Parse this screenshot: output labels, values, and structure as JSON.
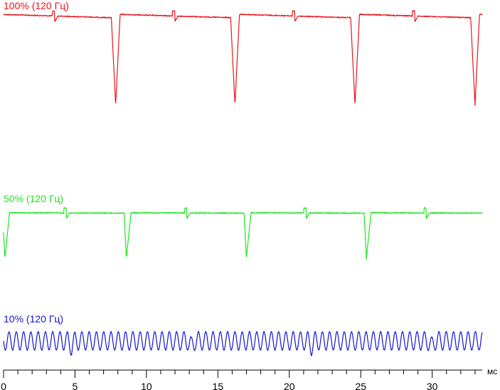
{
  "chart_data": {
    "type": "line",
    "title": "",
    "xlabel": "мс",
    "ylabel": "",
    "x_unit": "мс",
    "xlim": [
      0,
      33.5
    ],
    "x_ticks": [
      0,
      5,
      10,
      15,
      20,
      25,
      30
    ],
    "x_tick_labels": [
      "0",
      "5",
      "10",
      "15",
      "20",
      "25",
      "30"
    ],
    "x_minor_tick_step": 1,
    "grid": false,
    "legend": "none",
    "series": [
      {
        "name": "100% (120 Гц)",
        "color": "#e8141c",
        "brightness_percent": 100,
        "refresh_hz": 120,
        "dip_times_ms": [
          7.85,
          16.2,
          24.6,
          33.0
        ],
        "dip_depth_fraction": 0.97,
        "glitch_times_ms": [
          3.5,
          11.9,
          20.3,
          28.7
        ]
      },
      {
        "name": "50% (120 Гц)",
        "color": "#1ee61e",
        "brightness_percent": 50,
        "refresh_hz": 120,
        "dip_times_ms": [
          0.1,
          8.6,
          17.0,
          25.4
        ],
        "dip_depth_fraction": 0.97,
        "glitch_times_ms": [
          4.3,
          12.75,
          21.1,
          29.5
        ]
      },
      {
        "name": "10% (120 Гц)",
        "color": "#1414d2",
        "brightness_percent": 10,
        "refresh_hz": 120,
        "oscillation_period_ms": 0.51,
        "dip_times_ms": [
          4.75,
          13.15,
          21.55,
          29.95
        ]
      }
    ]
  }
}
